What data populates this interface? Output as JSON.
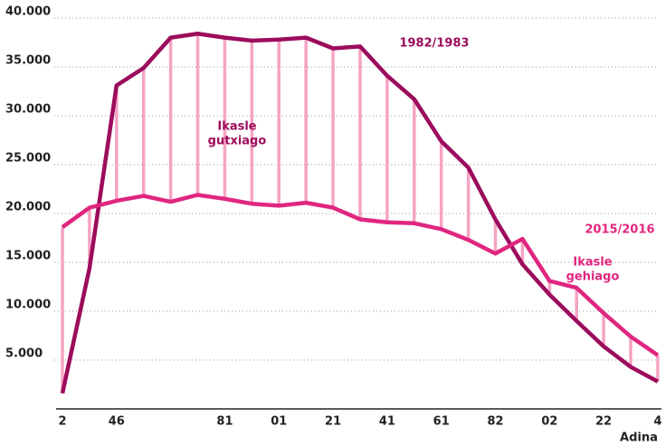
{
  "chart_data": {
    "type": "line",
    "categories": [
      "2",
      null,
      "46",
      null,
      null,
      null,
      "81",
      null,
      "01",
      null,
      "21",
      null,
      "41",
      null,
      "61",
      null,
      "82",
      null,
      "02",
      null,
      "22",
      null,
      "4"
    ],
    "x_label": "Adina",
    "series": [
      {
        "name": "1982/1983",
        "color": "#9c0c5c",
        "values": [
          1600,
          14400,
          33100,
          34900,
          38000,
          38400,
          38000,
          37700,
          37800,
          38000,
          36900,
          37100,
          34100,
          31700,
          27400,
          24700,
          19400,
          14800,
          11700,
          9000,
          6400,
          4300,
          2800
        ]
      },
      {
        "name": "2015/2016",
        "color": "#e0267f",
        "values": [
          18600,
          20600,
          21300,
          21800,
          21200,
          21900,
          21500,
          21000,
          20800,
          21100,
          20600,
          19400,
          19100,
          19000,
          18400,
          17300,
          15900,
          17400,
          13100,
          12400,
          9800,
          7400,
          5500
        ]
      }
    ],
    "connector_color": "#f6a3c4",
    "annotations": [
      {
        "lines": [
          "Ikasle",
          "gutxiago"
        ],
        "color": "#9c0c5c"
      },
      {
        "lines": [
          "Ikasle",
          "gehiago"
        ],
        "color": "#e0267f"
      }
    ],
    "ylim": [
      0,
      40000
    ],
    "yticks": [
      {
        "value": 5000,
        "label": "5.000"
      },
      {
        "value": 10000,
        "label": "10.000"
      },
      {
        "value": 15000,
        "label": "15.000"
      },
      {
        "value": 20000,
        "label": "20.000"
      },
      {
        "value": 25000,
        "label": "25.000"
      },
      {
        "value": 30000,
        "label": "30.000"
      },
      {
        "value": 35000,
        "label": "35.000"
      },
      {
        "value": 40000,
        "label": "40.000"
      }
    ],
    "grid": true
  }
}
